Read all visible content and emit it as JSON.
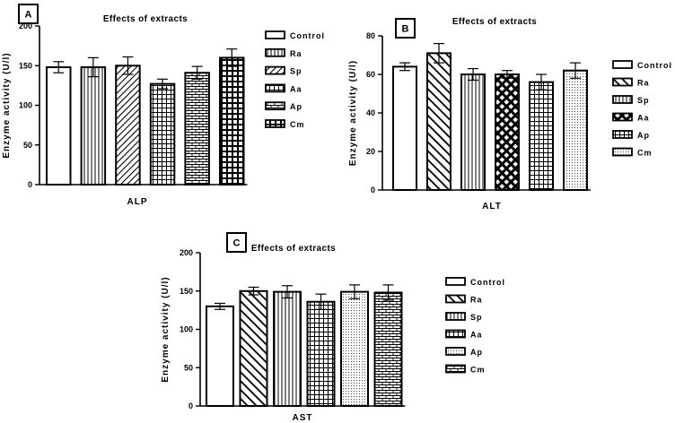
{
  "chart_data": [
    {
      "panel": "A",
      "type": "bar",
      "title": "Effects of extracts",
      "xlabel": "ALP",
      "ylabel": "Enzyme activity (U/l)",
      "ylim": [
        0,
        200
      ],
      "yticks": [
        0,
        50,
        100,
        150,
        200
      ],
      "categories": [
        "Control",
        "Ra",
        "Sp",
        "Aa",
        "Ap",
        "Cm"
      ],
      "values": [
        148,
        148,
        150,
        127,
        141,
        160
      ],
      "errors": [
        7,
        12,
        11,
        6,
        8,
        11
      ],
      "patterns": [
        "empty",
        "vlines",
        "backdiag",
        "grid",
        "brick",
        "bigcheck"
      ],
      "legend_position": "right"
    },
    {
      "panel": "B",
      "type": "bar",
      "title": "Effects of extracts",
      "xlabel": "ALT",
      "ylabel": "Enzyme activity (U/l)",
      "ylim": [
        0,
        80
      ],
      "yticks": [
        0,
        20,
        40,
        60,
        80
      ],
      "categories": [
        "Control",
        "Ra",
        "Sp",
        "Aa",
        "Ap",
        "Cm"
      ],
      "values": [
        64,
        71,
        60,
        60,
        56,
        62
      ],
      "errors": [
        2,
        5,
        3,
        2,
        4,
        4
      ],
      "patterns": [
        "empty",
        "fwddiag",
        "vlines",
        "diamond",
        "grid",
        "dots"
      ],
      "legend_position": "right"
    },
    {
      "panel": "C",
      "type": "bar",
      "title": "Effects of extracts",
      "xlabel": "AST",
      "ylabel": "Enzyme activity (U/l)",
      "ylim": [
        0,
        200
      ],
      "yticks": [
        0,
        50,
        100,
        150,
        200
      ],
      "categories": [
        "Control",
        "Ra",
        "Sp",
        "Aa",
        "Ap",
        "Cm"
      ],
      "values": [
        130,
        150,
        149,
        136,
        149,
        148
      ],
      "errors": [
        4,
        5,
        8,
        10,
        9,
        10
      ],
      "patterns": [
        "empty",
        "fwddiag",
        "vlines",
        "grid",
        "dots",
        "brick"
      ],
      "legend_position": "right"
    }
  ]
}
